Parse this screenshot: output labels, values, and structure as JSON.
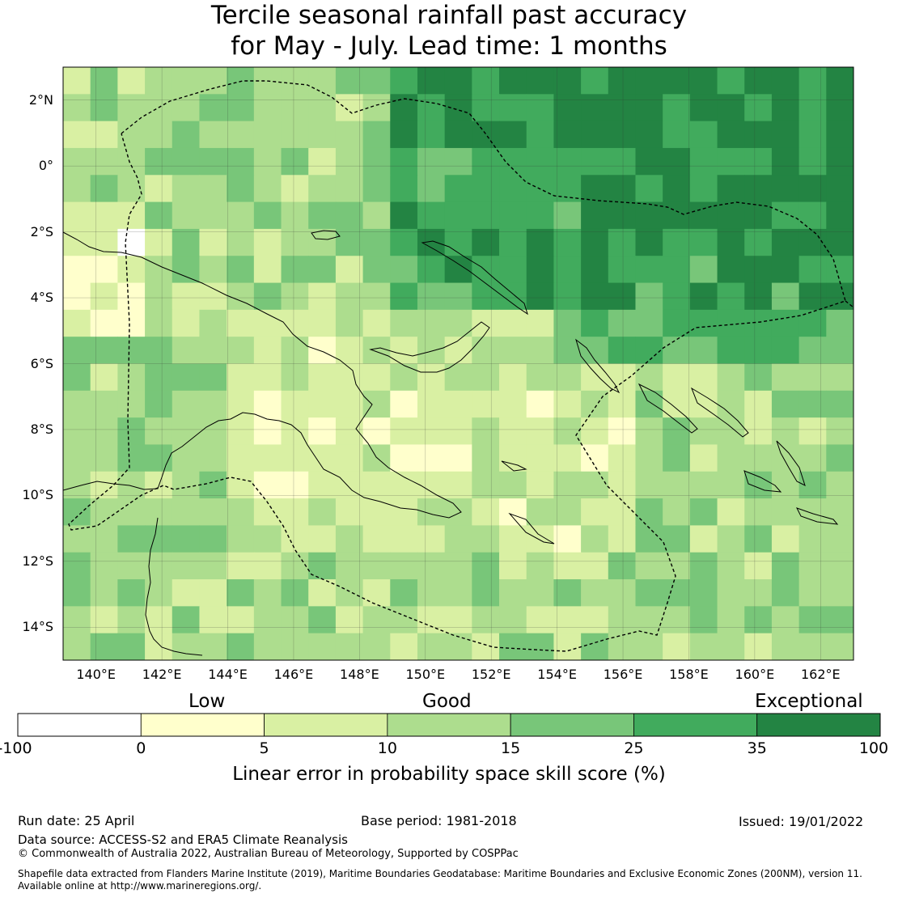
{
  "title": {
    "line1": "Tercile seasonal rainfall past accuracy",
    "line2": "for May - July. Lead time: 1 months"
  },
  "map": {
    "lon_range": [
      139,
      163
    ],
    "lat_range": [
      -15,
      3
    ],
    "lat_labels": [
      "2°N",
      "0°",
      "2°S",
      "4°S",
      "6°S",
      "8°S",
      "10°S",
      "12°S",
      "14°S"
    ],
    "lon_labels": [
      "140°E",
      "142°E",
      "144°E",
      "146°E",
      "148°E",
      "150°E",
      "152°E",
      "154°E",
      "156°E",
      "158°E",
      "160°E",
      "162°E"
    ]
  },
  "colorbar": {
    "categories": [
      "Low",
      "Good",
      "Exceptional"
    ],
    "ticks": [
      "-100",
      "0",
      "5",
      "10",
      "15",
      "25",
      "35",
      "100"
    ],
    "colors": [
      "#ffffff",
      "#ffffcc",
      "#d9f0a3",
      "#addd8e",
      "#78c679",
      "#41ab5d",
      "#238443"
    ],
    "title": "Linear error in probability space skill score (%)"
  },
  "footer": {
    "run_date": "Run date: 25 April",
    "base_period": "Base period: 1981-2018",
    "issued": "Issued: 19/01/2022",
    "data_source": "Data source: ACCESS-S2 and ERA5 Climate Reanalysis",
    "copyright": "© Commonwealth of Australia 2022, Australian Bureau of Meteorology, Supported by COSPPac",
    "shapefile_line1": "Shapefile data extracted from Flanders Marine Institute (2019), Maritime Boundaries Geodatabase: Maritime Boundaries and Exclusive Economic Zones (200NM), version 11.",
    "shapefile_line2": "Available online at http://www.marineregions.org/."
  }
}
